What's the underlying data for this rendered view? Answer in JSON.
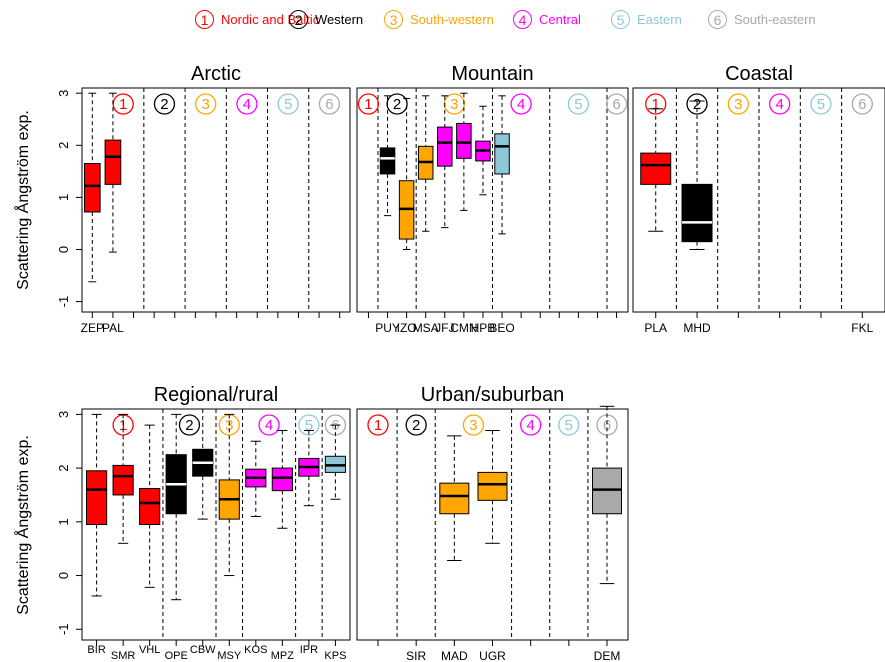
{
  "legend": [
    {
      "num": "1",
      "label": "Nordic and Baltic",
      "color": "#ff0000"
    },
    {
      "num": "2",
      "label": "Western",
      "color": "#000000"
    },
    {
      "num": "3",
      "label": "South-western",
      "color": "#ffa500"
    },
    {
      "num": "4",
      "label": "Central",
      "color": "#ff00ff"
    },
    {
      "num": "5",
      "label": "Eastern",
      "color": "#8ec8d8"
    },
    {
      "num": "6",
      "label": "South-eastern",
      "color": "#a9a9a9"
    }
  ],
  "ylabel": "Scattering Ångström exp.",
  "chart_data": [
    {
      "type": "boxplot",
      "title": "Arctic",
      "ylim": [
        -1.2,
        3.1
      ],
      "yticks": [
        -1,
        0,
        1,
        2,
        3
      ],
      "region_dividers": [
        3.5,
        5.5,
        7.5,
        9.5,
        11.5
      ],
      "region_label_x": [
        2.5,
        4.5,
        6.5,
        8.5,
        10.5,
        12.5
      ],
      "xlim": [
        0.5,
        13.5
      ],
      "boxes": [
        {
          "label": "ZEP",
          "x": 1,
          "region": 1,
          "whisker_low": -0.62,
          "q1": 0.72,
          "median": 1.22,
          "q3": 1.65,
          "whisker_high": 3.0
        },
        {
          "label": "PAL",
          "x": 2,
          "region": 1,
          "whisker_low": -0.05,
          "q1": 1.25,
          "median": 1.78,
          "q3": 2.1,
          "whisker_high": 3.0
        }
      ]
    },
    {
      "type": "boxplot",
      "title": "Mountain",
      "ylim": [
        -1.2,
        3.1
      ],
      "yticks": [
        -1,
        0,
        1,
        2,
        3
      ],
      "region_dividers": [
        1.5,
        3.5,
        7.5,
        10.5,
        13.5
      ],
      "region_label_x": [
        1,
        2.5,
        5.5,
        9,
        12,
        14
      ],
      "xlim": [
        0.4,
        14.6
      ],
      "boxes": [
        {
          "label": "PUY",
          "x": 2,
          "region": 2,
          "whisker_low": 0.65,
          "q1": 1.45,
          "median": 1.75,
          "q3": 1.95,
          "whisker_high": 2.95
        },
        {
          "label": "IZO",
          "x": 3,
          "region": 3,
          "whisker_low": 0.0,
          "q1": 0.2,
          "median": 0.78,
          "q3": 1.32,
          "whisker_high": 2.9
        },
        {
          "label": "MSA",
          "x": 4,
          "region": 3,
          "whisker_low": 0.35,
          "q1": 1.35,
          "median": 1.68,
          "q3": 1.98,
          "whisker_high": 2.95
        },
        {
          "label": "JFJ",
          "x": 5,
          "region": 4,
          "whisker_low": 0.42,
          "q1": 1.6,
          "median": 2.05,
          "q3": 2.35,
          "whisker_high": 2.95
        },
        {
          "label": "CMN",
          "x": 6,
          "region": 4,
          "whisker_low": 0.75,
          "q1": 1.75,
          "median": 2.05,
          "q3": 2.42,
          "whisker_high": 3.0
        },
        {
          "label": "HPB",
          "x": 7,
          "region": 4,
          "whisker_low": 1.05,
          "q1": 1.7,
          "median": 1.9,
          "q3": 2.08,
          "whisker_high": 2.75
        },
        {
          "label": "BEO",
          "x": 8,
          "region": 5,
          "whisker_low": 0.3,
          "q1": 1.45,
          "median": 1.98,
          "q3": 2.22,
          "whisker_high": 2.95
        }
      ]
    },
    {
      "type": "boxplot",
      "title": "Coastal",
      "ylim": [
        -1.2,
        3.1
      ],
      "yticks": [
        -1,
        0,
        1,
        2,
        3
      ],
      "region_dividers": [
        1.5,
        2.5,
        3.5,
        4.5,
        5.5
      ],
      "region_label_x": [
        1,
        2,
        3,
        4,
        5,
        6
      ],
      "xlim": [
        0.45,
        6.55
      ],
      "boxes": [
        {
          "label": "PLA",
          "x": 1,
          "region": 1,
          "whisker_low": 0.35,
          "q1": 1.25,
          "median": 1.62,
          "q3": 1.85,
          "whisker_high": 2.7
        },
        {
          "label": "MHD",
          "x": 2,
          "region": 2,
          "whisker_low": 0.0,
          "q1": 0.15,
          "median": 0.52,
          "q3": 1.25,
          "whisker_high": 2.85
        },
        {
          "label": "FKL",
          "x": 6,
          "region": 6
        }
      ]
    },
    {
      "type": "boxplot",
      "title": "Regional/rural",
      "ylim": [
        -1.2,
        3.1
      ],
      "yticks": [
        -1,
        0,
        1,
        2,
        3
      ],
      "region_dividers": [
        3.5,
        5.5,
        6.5,
        8.5,
        9.5
      ],
      "region_label_x": [
        2,
        4.5,
        6,
        7.5,
        9,
        10
      ],
      "xlim": [
        0.45,
        10.55
      ],
      "boxes": [
        {
          "label": "BIR",
          "x": 1,
          "region": 1,
          "whisker_low": -0.38,
          "q1": 0.95,
          "median": 1.6,
          "q3": 1.95,
          "whisker_high": 3.0
        },
        {
          "label": "SMR",
          "x": 2,
          "region": 1,
          "whisker_low": 0.6,
          "q1": 1.5,
          "median": 1.85,
          "q3": 2.05,
          "whisker_high": 3.0
        },
        {
          "label": "VHL",
          "x": 3,
          "region": 1,
          "whisker_low": -0.22,
          "q1": 0.95,
          "median": 1.35,
          "q3": 1.62,
          "whisker_high": 2.8
        },
        {
          "label": "OPE",
          "x": 4,
          "region": 2,
          "whisker_low": -0.45,
          "q1": 1.15,
          "median": 1.7,
          "q3": 2.25,
          "whisker_high": 3.0
        },
        {
          "label": "CBW",
          "x": 5,
          "region": 2,
          "whisker_low": 1.05,
          "q1": 1.85,
          "median": 2.1,
          "q3": 2.35,
          "whisker_high": 3.1
        },
        {
          "label": "MSY",
          "x": 6,
          "region": 3,
          "whisker_low": 0.0,
          "q1": 1.05,
          "median": 1.42,
          "q3": 1.78,
          "whisker_high": 3.0
        },
        {
          "label": "KOS",
          "x": 7,
          "region": 4,
          "whisker_low": 1.1,
          "q1": 1.65,
          "median": 1.82,
          "q3": 1.98,
          "whisker_high": 2.5
        },
        {
          "label": "MPZ",
          "x": 8,
          "region": 4,
          "whisker_low": 0.88,
          "q1": 1.58,
          "median": 1.82,
          "q3": 2.0,
          "whisker_high": 2.7
        },
        {
          "label": "IPR",
          "x": 9,
          "region": 4,
          "whisker_low": 1.3,
          "q1": 1.85,
          "median": 2.02,
          "q3": 2.18,
          "whisker_high": 2.7
        },
        {
          "label": "KPS",
          "x": 10,
          "region": 5,
          "whisker_low": 1.42,
          "q1": 1.92,
          "median": 2.05,
          "q3": 2.22,
          "whisker_high": 2.8
        }
      ]
    },
    {
      "type": "boxplot",
      "title": "Urban/suburban",
      "ylim": [
        -1.2,
        3.1
      ],
      "yticks": [
        -1,
        0,
        1,
        2,
        3
      ],
      "region_dividers": [
        1.5,
        2.5,
        4.5,
        5.5,
        6.5
      ],
      "region_label_x": [
        1,
        2,
        3.5,
        5,
        6,
        7
      ],
      "xlim": [
        0.45,
        7.55
      ],
      "boxes": [
        {
          "label": "SIR",
          "x": 2,
          "region": 2
        },
        {
          "label": "MAD",
          "x": 3,
          "region": 3,
          "whisker_low": 0.28,
          "q1": 1.15,
          "median": 1.48,
          "q3": 1.72,
          "whisker_high": 2.6
        },
        {
          "label": "UGR",
          "x": 4,
          "region": 3,
          "whisker_low": 0.6,
          "q1": 1.4,
          "median": 1.7,
          "q3": 1.92,
          "whisker_high": 2.7
        },
        {
          "label": "DEM",
          "x": 7,
          "region": 6,
          "whisker_low": -0.15,
          "q1": 1.15,
          "median": 1.6,
          "q3": 2.0,
          "whisker_high": 3.15
        }
      ]
    }
  ]
}
